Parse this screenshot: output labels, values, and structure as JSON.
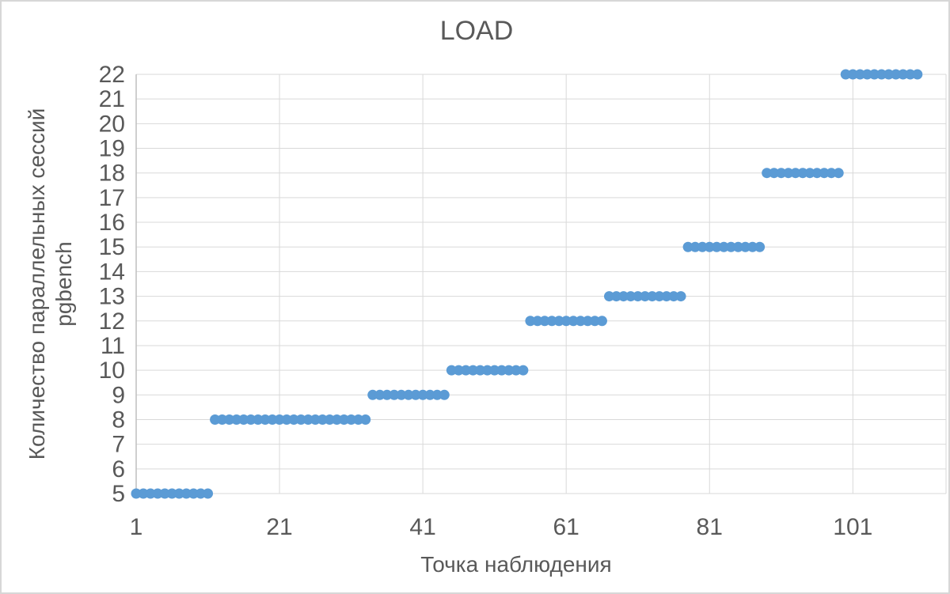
{
  "chart": {
    "title": "LOAD",
    "x_axis_title": "Точка наблюдения",
    "y_axis_title_line1": "Количество параллельных сессий",
    "y_axis_title_line2": "pgbench"
  },
  "chart_data": {
    "type": "scatter",
    "title": "LOAD",
    "xlabel": "Точка наблюдения",
    "ylabel": "Количество параллельных сессий pgbench",
    "ylabel_lines": [
      "Количество параллельных сессий",
      "pgbench"
    ],
    "xlim": [
      1,
      114
    ],
    "ylim": [
      5,
      22
    ],
    "x_ticks": [
      1,
      21,
      41,
      61,
      81,
      101
    ],
    "y_ticks": [
      5,
      6,
      7,
      8,
      9,
      10,
      11,
      12,
      13,
      14,
      15,
      16,
      17,
      18,
      19,
      20,
      21,
      22
    ],
    "grid": true,
    "legend": false,
    "marker_color": "#5B9BD5",
    "gridline_color": "#D9D9D9",
    "axis_line_color": "#BFBFBF",
    "text_color": "#595959",
    "series_note": "step plot of pgbench parallel sessions per observation point; each segment lists y value and inclusive x range with points at every integer x",
    "segments": [
      {
        "y": 5,
        "x_start": 1,
        "x_end": 11
      },
      {
        "y": 8,
        "x_start": 12,
        "x_end": 33
      },
      {
        "y": 9,
        "x_start": 34,
        "x_end": 44
      },
      {
        "y": 10,
        "x_start": 45,
        "x_end": 55
      },
      {
        "y": 12,
        "x_start": 56,
        "x_end": 66
      },
      {
        "y": 13,
        "x_start": 67,
        "x_end": 77
      },
      {
        "y": 15,
        "x_start": 78,
        "x_end": 88
      },
      {
        "y": 18,
        "x_start": 89,
        "x_end": 99
      },
      {
        "y": 22,
        "x_start": 100,
        "x_end": 110
      }
    ]
  }
}
